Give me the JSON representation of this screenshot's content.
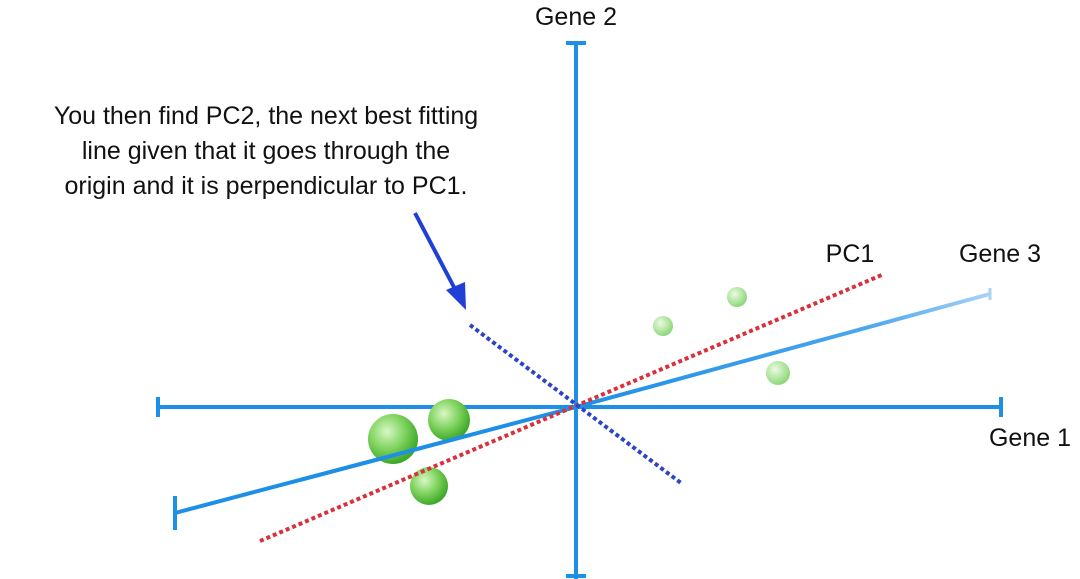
{
  "annotation": {
    "lines": [
      "You then find PC2, the next best fitting",
      "line given that it goes through the",
      "origin and it is perpendicular to PC1."
    ]
  },
  "axes": {
    "gene1_label": "Gene 1",
    "gene2_label": "Gene 2",
    "gene3_label": "Gene 3"
  },
  "pc1_label": "PC1",
  "colors": {
    "axis": "#1e8fe6",
    "axis_light": "#9dcaf3",
    "pc1": "#d9313a",
    "pc2": "#2b44c9",
    "arrow": "#1f3fd6",
    "point_light": "#c8f0b0",
    "point_dark": "#3fb52b"
  }
}
